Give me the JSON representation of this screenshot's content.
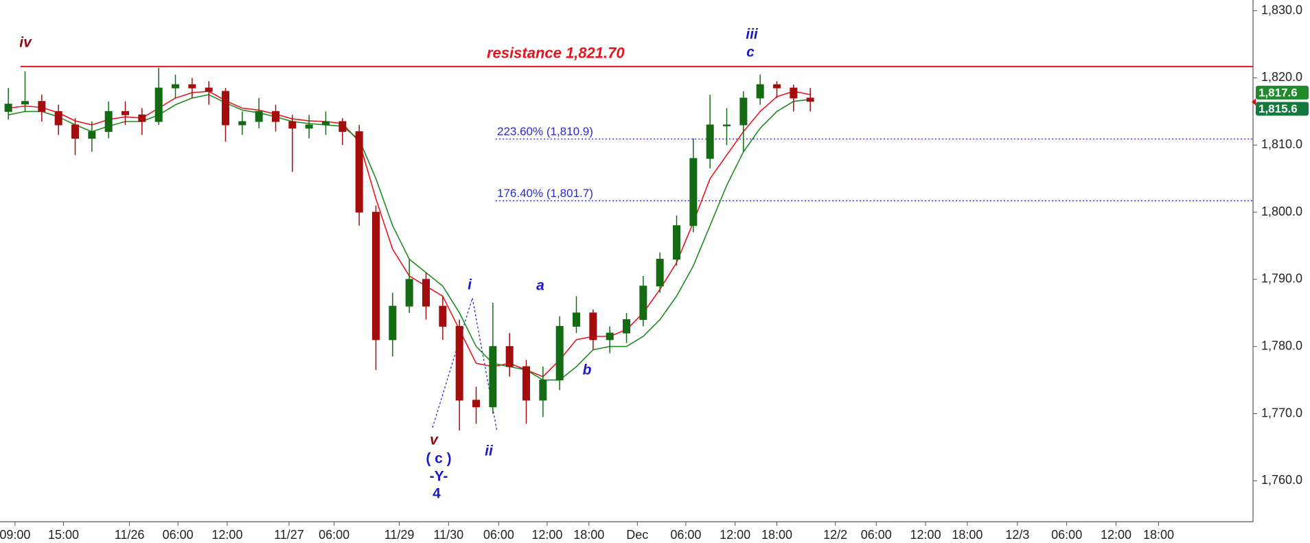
{
  "chart_data": {
    "type": "candlestick",
    "x": [
      1,
      3,
      5,
      7,
      9,
      11,
      13,
      15,
      17,
      19,
      21,
      23,
      25,
      27,
      29,
      31,
      33,
      35,
      37,
      39,
      41,
      43,
      45,
      47,
      49,
      51,
      53,
      55,
      57,
      59,
      61,
      63,
      65,
      67,
      69,
      71,
      73,
      75,
      77,
      79,
      81,
      83,
      85,
      87,
      89,
      91,
      93,
      95,
      97
    ],
    "open": [
      1815.0,
      1816.1,
      1816.5,
      1815.0,
      1813.0,
      1811.0,
      1812.0,
      1815.0,
      1814.5,
      1813.5,
      1818.5,
      1819.0,
      1818.5,
      1818.0,
      1813.0,
      1813.5,
      1815.0,
      1813.5,
      1812.5,
      1813.0,
      1813.5,
      1812.0,
      1800.0,
      1781.0,
      1786.0,
      1790.0,
      1786.0,
      1783.0,
      1772.0,
      1771.0,
      1780.0,
      1777.0,
      1772.0,
      1775.0,
      1783.0,
      1785.0,
      1781.0,
      1782.0,
      1784.0,
      1789.0,
      1793.0,
      1798.0,
      1808.0,
      1813.0,
      1813.0,
      1817.0,
      1819.0,
      1818.5,
      1817.0
    ],
    "high": [
      1818.5,
      1821.0,
      1817.5,
      1816.0,
      1814.0,
      1813.5,
      1816.5,
      1816.5,
      1815.5,
      1821.5,
      1820.5,
      1820.0,
      1819.5,
      1818.5,
      1815.0,
      1817.0,
      1816.0,
      1814.5,
      1814.5,
      1815.0,
      1814.0,
      1813.0,
      1801.0,
      1788.0,
      1793.0,
      1791.0,
      1787.5,
      1784.0,
      1774.0,
      1786.5,
      1782.0,
      1778.0,
      1777.0,
      1784.5,
      1787.5,
      1785.5,
      1783.0,
      1785.0,
      1790.5,
      1794.0,
      1799.5,
      1811.0,
      1817.5,
      1815.5,
      1818.0,
      1820.5,
      1819.5,
      1819.0,
      1818.5
    ],
    "low": [
      1813.8,
      1814.9,
      1813.5,
      1811.5,
      1808.5,
      1809.0,
      1811.0,
      1813.0,
      1811.5,
      1813.0,
      1817.0,
      1817.0,
      1816.0,
      1810.5,
      1811.5,
      1812.5,
      1812.0,
      1806.0,
      1811.0,
      1811.5,
      1810.0,
      1798.0,
      1776.5,
      1778.5,
      1785.0,
      1784.0,
      1781.0,
      1767.5,
      1768.5,
      1770.0,
      1775.5,
      1768.5,
      1769.5,
      1773.5,
      1782.0,
      1779.5,
      1779.0,
      1780.5,
      1783.0,
      1788.0,
      1792.0,
      1797.0,
      1806.5,
      1810.0,
      1809.0,
      1816.0,
      1817.0,
      1815.0,
      1815.0
    ],
    "close": [
      1816.1,
      1816.5,
      1815.0,
      1813.0,
      1811.0,
      1812.0,
      1815.0,
      1814.5,
      1813.5,
      1818.5,
      1819.0,
      1818.5,
      1818.0,
      1813.0,
      1813.5,
      1815.0,
      1813.5,
      1812.5,
      1813.0,
      1813.5,
      1812.0,
      1800.0,
      1781.0,
      1786.0,
      1790.0,
      1786.0,
      1783.0,
      1772.0,
      1771.0,
      1780.0,
      1777.0,
      1772.0,
      1775.0,
      1783.0,
      1785.0,
      1781.0,
      1782.0,
      1784.0,
      1789.0,
      1793.0,
      1798.0,
      1808.0,
      1813.0,
      1813.0,
      1817.0,
      1819.0,
      1818.5,
      1817.0,
      1816.5
    ],
    "up_color": "#146b14",
    "down_color": "#a30d0d",
    "moving_averages": [
      {
        "color": "#e8141c",
        "values": [
          1815.5,
          1815.8,
          1815.6,
          1814.8,
          1813.6,
          1813,
          1813.8,
          1814.2,
          1814,
          1815.5,
          1817,
          1817.8,
          1818,
          1816.6,
          1815.5,
          1815.2,
          1814.6,
          1813.9,
          1813.6,
          1813.5,
          1813.2,
          1810.5,
          1802,
          1794.5,
          1790.5,
          1789,
          1787.5,
          1782.5,
          1777.5,
          1777,
          1777.5,
          1776.5,
          1775.5,
          1778,
          1781,
          1781.5,
          1781.5,
          1782.5,
          1785,
          1788.5,
          1792.5,
          1798.5,
          1805,
          1808.5,
          1812,
          1815,
          1817.2,
          1818,
          1817.5
        ]
      },
      {
        "color": "#1f8a1f",
        "values": [
          1814.5,
          1815,
          1815,
          1814.2,
          1813,
          1812,
          1812.8,
          1813.5,
          1813.5,
          1814.5,
          1816,
          1817,
          1817.5,
          1816.3,
          1815.2,
          1814.8,
          1814.2,
          1813.5,
          1813.2,
          1813,
          1812.8,
          1810.8,
          1805,
          1798,
          1793,
          1791,
          1789,
          1785,
          1780,
          1777.5,
          1777,
          1776.5,
          1775,
          1775,
          1777,
          1779.5,
          1780,
          1780,
          1781.5,
          1784,
          1787.5,
          1792,
          1798,
          1804,
          1809,
          1812.5,
          1815,
          1816.5,
          1816.8
        ]
      }
    ],
    "xlim": [
      0,
      150
    ],
    "ylim": [
      1753.9,
      1831.6
    ],
    "xticks": [
      {
        "value": 1.8,
        "label": "09:00"
      },
      {
        "value": 7.6,
        "label": "15:00"
      },
      {
        "value": 15.5,
        "label": "11/26"
      },
      {
        "value": 21.3,
        "label": "06:00"
      },
      {
        "value": 27.2,
        "label": "12:00"
      },
      {
        "value": 34.6,
        "label": "11/27"
      },
      {
        "value": 40.0,
        "label": "06:00"
      },
      {
        "value": 47.8,
        "label": "11/29"
      },
      {
        "value": 53.7,
        "label": "11/30"
      },
      {
        "value": 59.7,
        "label": "06:00"
      },
      {
        "value": 65.5,
        "label": "12:00"
      },
      {
        "value": 70.5,
        "label": "18:00"
      },
      {
        "value": 76.3,
        "label": "Dec"
      },
      {
        "value": 82.1,
        "label": "06:00"
      },
      {
        "value": 88.0,
        "label": "12:00"
      },
      {
        "value": 93.0,
        "label": "18:00"
      },
      {
        "value": 100.0,
        "label": "12/2"
      },
      {
        "value": 104.9,
        "label": "06:00"
      },
      {
        "value": 110.8,
        "label": "12:00"
      },
      {
        "value": 115.8,
        "label": "18:00"
      },
      {
        "value": 121.8,
        "label": "12/3"
      },
      {
        "value": 127.7,
        "label": "06:00"
      },
      {
        "value": 133.6,
        "label": "12:00"
      },
      {
        "value": 138.7,
        "label": "18:00"
      }
    ],
    "yticks": [
      {
        "value": 1760,
        "label": "1,760.0"
      },
      {
        "value": 1770,
        "label": "1,770.0"
      },
      {
        "value": 1780,
        "label": "1,780.0"
      },
      {
        "value": 1790,
        "label": "1,790.0"
      },
      {
        "value": 1800,
        "label": "1,800.0"
      },
      {
        "value": 1810,
        "label": "1,810.0"
      },
      {
        "value": 1820,
        "label": "1,820.0"
      },
      {
        "value": 1830,
        "label": "1,830.0"
      }
    ],
    "levels": [
      {
        "value": 1821.7,
        "label": "resistance 1,821.70",
        "color": "#e8141c",
        "style": "solid"
      },
      {
        "value": 1810.9,
        "label": "223.60% (1,810.9)",
        "color": "#2a2ad0",
        "style": "dotted"
      },
      {
        "value": 1801.7,
        "label": "176.40% (1,801.7)",
        "color": "#2a2ad0",
        "style": "dotted"
      }
    ],
    "last_prices": [
      {
        "value": 1817.6,
        "label": "1,817.6",
        "color": "#1e8a2a"
      },
      {
        "value": 1815.6,
        "label": "1,815.6",
        "color": "#127a3c"
      }
    ],
    "annotations": [
      {
        "text": "iv",
        "color": "#8b0a0a"
      },
      {
        "text": "iii",
        "color": "#1a1acc"
      },
      {
        "text": "c",
        "color": "#1a1acc"
      },
      {
        "text": "i",
        "color": "#1a1acc"
      },
      {
        "text": "a",
        "color": "#1a1acc"
      },
      {
        "text": "b",
        "color": "#1a1acc"
      },
      {
        "text": "ii",
        "color": "#1a1acc"
      },
      {
        "text": "v",
        "color": "#8b0a0a"
      },
      {
        "text": "( c )",
        "color": "#1a1acc"
      },
      {
        "text": "-Y-",
        "color": "#1a1acc"
      },
      {
        "text": "4",
        "color": "#1a1acc"
      }
    ]
  }
}
